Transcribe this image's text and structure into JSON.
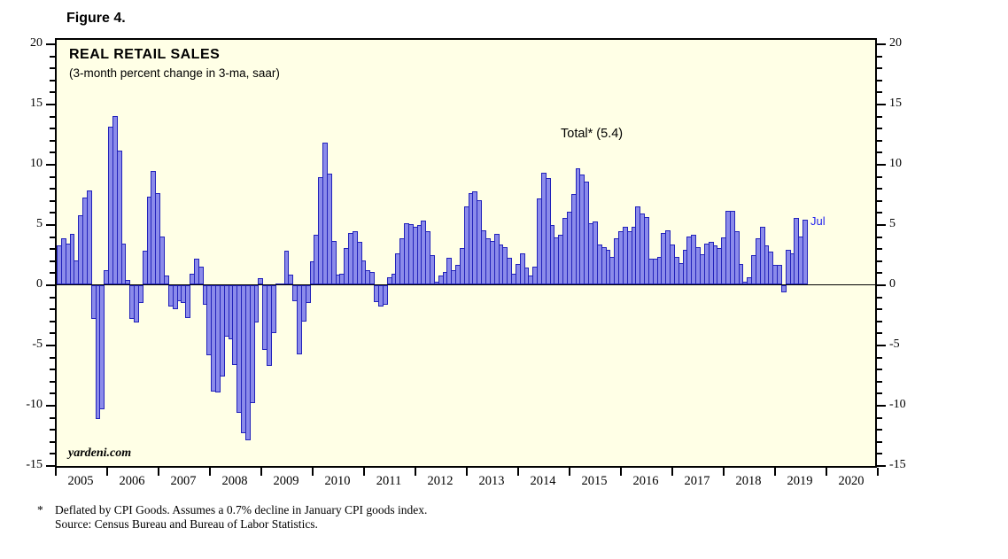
{
  "figure_label": "Figure 4.",
  "chart": {
    "title": "REAL RETAIL SALES",
    "subtitle": "(3-month percent change in 3-ma, saar)",
    "annotation": "Total* (5.4)",
    "last_point_label": "Jul",
    "watermark": "yardeni.com"
  },
  "footnote": {
    "marker": "*",
    "line1": "Deflated by CPI Goods. Assumes a 0.7% decline in January CPI goods index.",
    "line2": "Source: Census Bureau and Bureau of Labor Statistics."
  },
  "colors": {
    "bar_fill": "#8b8bea",
    "bar_border": "#2222bb",
    "plot_bg": "#ffffe6",
    "annotation_blue": "#2222ee",
    "axis": "#000000"
  },
  "chart_data": {
    "type": "bar",
    "title": "REAL RETAIL SALES",
    "subtitle": "(3-month percent change in 3-ma, saar)",
    "ylabel": "",
    "xlabel": "",
    "ylim": [
      -15,
      20
    ],
    "y_major_ticks": [
      20,
      15,
      10,
      5,
      0,
      -5,
      -10,
      -15
    ],
    "y_minor_step": 1,
    "grid": false,
    "x_year_labels": [
      "2005",
      "2006",
      "2007",
      "2008",
      "2009",
      "2010",
      "2011",
      "2012",
      "2013",
      "2014",
      "2015",
      "2016",
      "2017",
      "2018",
      "2019",
      "2020"
    ],
    "start_month": "2005-01",
    "end_month": "2019-07",
    "annotation_total_latest": 5.4,
    "last_bar_label": "Jul",
    "values": [
      3.2,
      3.8,
      3.4,
      4.2,
      2.0,
      5.7,
      7.2,
      7.8,
      -2.8,
      -11.1,
      -10.3,
      1.2,
      13.1,
      14.0,
      11.1,
      3.4,
      0.4,
      -2.8,
      -3.1,
      -1.5,
      2.8,
      7.3,
      9.4,
      7.6,
      4.0,
      0.7,
      -1.8,
      -2.0,
      -1.3,
      -1.5,
      -2.7,
      0.9,
      2.1,
      1.5,
      -1.6,
      -5.8,
      -8.8,
      -8.9,
      -7.6,
      -4.3,
      -4.5,
      -6.6,
      -10.6,
      -12.3,
      -12.9,
      -9.8,
      -3.1,
      0.5,
      -5.4,
      -6.7,
      -4.0,
      0.1,
      0.1,
      2.8,
      0.8,
      -1.3,
      -5.7,
      -3.0,
      -1.5,
      1.9,
      4.1,
      8.9,
      11.8,
      9.2,
      3.6,
      0.8,
      0.9,
      3.0,
      4.3,
      4.4,
      3.5,
      2.0,
      1.2,
      1.0,
      -1.4,
      -1.8,
      -1.6,
      0.6,
      0.9,
      2.6,
      3.8,
      5.1,
      5.0,
      4.8,
      4.9,
      5.3,
      4.4,
      2.4,
      0.2,
      0.7,
      1.0,
      2.2,
      1.2,
      1.6,
      3.0,
      6.5,
      7.6,
      7.7,
      7.0,
      4.5,
      3.8,
      3.6,
      4.2,
      3.3,
      3.1,
      2.2,
      0.9,
      1.7,
      2.6,
      1.4,
      0.7,
      1.5,
      7.1,
      9.3,
      8.8,
      4.9,
      3.9,
      4.1,
      5.5,
      6.0,
      7.5,
      9.6,
      9.1,
      8.5,
      5.1,
      5.2,
      3.3,
      3.1,
      2.9,
      2.3,
      3.8,
      4.4,
      4.8,
      4.4,
      4.8,
      6.5,
      5.9,
      5.6,
      2.1,
      2.1,
      2.3,
      4.3,
      4.5,
      3.3,
      2.3,
      1.8,
      2.9,
      4.0,
      4.1,
      3.1,
      2.5,
      3.4,
      3.5,
      3.2,
      3.0,
      3.9,
      6.1,
      6.1,
      4.4,
      1.7,
      0.2,
      0.6,
      2.4,
      3.8,
      4.8,
      3.2,
      2.7,
      1.65,
      1.6,
      -0.6,
      2.9,
      2.6,
      5.5,
      4.0,
      5.4
    ]
  }
}
